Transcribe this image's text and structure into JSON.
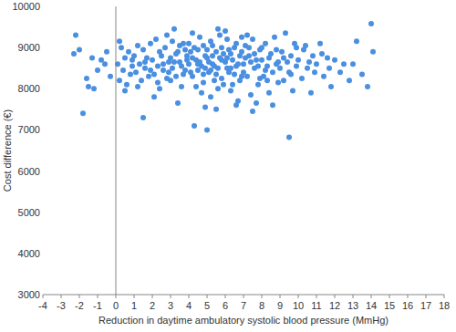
{
  "chart_data": {
    "type": "scatter",
    "x_label": "Reduction in daytime ambulatory systolic blood pressure (MmHg)",
    "y_label": "Cost difference (€)",
    "color": "#4a8fe0",
    "marker": "circle",
    "grid": false,
    "xlim": [
      -4,
      18
    ],
    "ylim": [
      3000,
      10000
    ],
    "xticks": [
      -4,
      -3,
      -2,
      -1,
      0,
      1,
      2,
      3,
      4,
      5,
      6,
      7,
      8,
      9,
      10,
      11,
      12,
      13,
      14,
      15,
      16,
      17,
      18
    ],
    "yticks": [
      3000,
      4000,
      5000,
      6000,
      7000,
      8000,
      9000,
      10000
    ],
    "x": [
      0.1,
      0.2,
      0.3,
      0.4,
      0.5,
      0.6,
      0.7,
      0.8,
      0.9,
      0.2,
      0.5,
      0.9,
      1.0,
      1.1,
      1.2,
      1.3,
      1.4,
      1.5,
      1.5,
      1.6,
      1.7,
      1.8,
      1.9,
      1.2,
      1.6,
      1.9,
      2.0,
      2.1,
      2.2,
      2.3,
      2.4,
      2.5,
      2.6,
      2.7,
      2.8,
      2.9,
      2.1,
      2.4,
      2.6,
      2.8,
      2.3,
      2.9,
      3.0,
      3.1,
      3.2,
      3.3,
      3.4,
      3.5,
      3.6,
      3.7,
      3.8,
      3.9,
      3.0,
      3.2,
      3.4,
      3.5,
      3.6,
      3.7,
      3.8,
      3.9,
      3.3,
      3.1,
      4.0,
      4.1,
      4.2,
      4.3,
      4.3,
      4.4,
      4.5,
      4.6,
      4.7,
      4.8,
      4.9,
      4.0,
      4.1,
      4.2,
      4.4,
      4.5,
      4.6,
      4.7,
      4.8,
      4.9,
      4.2,
      4.5,
      4.8,
      4.9,
      5.0,
      5.0,
      5.1,
      5.2,
      5.3,
      5.4,
      5.5,
      5.6,
      5.7,
      5.8,
      5.9,
      5.0,
      5.1,
      5.2,
      5.3,
      5.4,
      5.5,
      5.6,
      5.7,
      5.8,
      5.9,
      5.2,
      5.5,
      5.8,
      5.3,
      5.6,
      6.0,
      6.1,
      6.2,
      6.3,
      6.4,
      6.5,
      6.6,
      6.7,
      6.8,
      6.9,
      6.0,
      6.1,
      6.2,
      6.3,
      6.4,
      6.5,
      6.6,
      6.7,
      6.8,
      6.9,
      6.3,
      6.6,
      6.9,
      6.1,
      7.0,
      7.1,
      7.2,
      7.3,
      7.4,
      7.5,
      7.6,
      7.7,
      7.8,
      7.9,
      7.0,
      7.2,
      7.4,
      7.5,
      7.6,
      7.8,
      7.9,
      7.3,
      7.1,
      7.7,
      8.0,
      8.1,
      8.2,
      8.3,
      8.4,
      8.5,
      8.6,
      8.7,
      8.8,
      8.9,
      8.0,
      8.2,
      8.4,
      8.6,
      8.8,
      8.3,
      8.9,
      9.0,
      9.1,
      9.2,
      9.3,
      9.4,
      9.5,
      9.5,
      9.6,
      9.7,
      9.8,
      9.9,
      9.2,
      9.6,
      9.9,
      10.0,
      10.2,
      10.4,
      10.5,
      10.7,
      10.8,
      10.9,
      10.3,
      10.6,
      11.0,
      11.2,
      11.4,
      11.6,
      11.8,
      11.3,
      11.7,
      12.0,
      12.3,
      12.5,
      12.8,
      13.0,
      13.2,
      13.5,
      13.8,
      14.0,
      14.1,
      -2.2,
      -2.3,
      -2.0,
      -1.8,
      -1.6,
      -1.5,
      -1.2,
      -1.0,
      -0.8,
      -0.5,
      -0.3,
      -0.6,
      -1.3
    ],
    "values": [
      8600,
      8200,
      9000,
      8450,
      8750,
      8100,
      8900,
      8350,
      8550,
      9150,
      7950,
      8700,
      8800,
      8400,
      9050,
      8600,
      8200,
      7300,
      8950,
      8500,
      8750,
      8300,
      9100,
      8050,
      8650,
      8450,
      8700,
      8350,
      9200,
      8550,
      8000,
      8800,
      8450,
      9000,
      8250,
      8650,
      7800,
      8900,
      8600,
      9300,
      8150,
      8400,
      8750,
      8500,
      9450,
      8300,
      8900,
      8650,
      8050,
      9100,
      8450,
      8800,
      8200,
      8650,
      7650,
      9050,
      8550,
      8350,
      8950,
      8700,
      8850,
      9150,
      8600,
      8900,
      8300,
      7100,
      9000,
      8700,
      8450,
      9250,
      8550,
      8150,
      8800,
      9100,
      8400,
      8750,
      8050,
      8950,
      8650,
      7900,
      9050,
      8500,
      9350,
      8600,
      8350,
      7550,
      7000,
      8750,
      8400,
      9150,
      8600,
      8200,
      8900,
      8500,
      9300,
      8700,
      8100,
      8950,
      8650,
      7800,
      9050,
      8550,
      8350,
      9450,
      8750,
      8250,
      8850,
      8450,
      7500,
      9000,
      8800,
      8000,
      8650,
      9200,
      8400,
      8850,
      8100,
      9000,
      8550,
      7700,
      8800,
      8300,
      9400,
      8500,
      8950,
      7950,
      8700,
      8350,
      9100,
      8600,
      8200,
      8900,
      8500,
      7600,
      9250,
      8750,
      8600,
      9050,
      8300,
      8800,
      7850,
      9200,
      8500,
      8700,
      8100,
      8950,
      8400,
      9300,
      8650,
      7450,
      8850,
      8550,
      8250,
      9000,
      8750,
      7650,
      8700,
      8300,
      9100,
      8550,
      7900,
      8850,
      8400,
      9250,
      8600,
      8150,
      9000,
      8450,
      8750,
      7600,
      8950,
      8200,
      8650,
      8500,
      8900,
      8200,
      9350,
      8650,
      6820,
      8400,
      8800,
      7950,
      9100,
      8550,
      8750,
      8350,
      9000,
      8700,
      8250,
      9050,
      8500,
      7900,
      8800,
      8400,
      8950,
      8650,
      8600,
      9100,
      8300,
      8750,
      8050,
      8850,
      8500,
      8700,
      8400,
      8600,
      8200,
      8600,
      9150,
      8350,
      8050,
      9580,
      8900,
      9300,
      8850,
      8950,
      7400,
      8250,
      8050,
      8000,
      8450,
      8700,
      8900,
      8300,
      8600,
      8750
    ]
  }
}
